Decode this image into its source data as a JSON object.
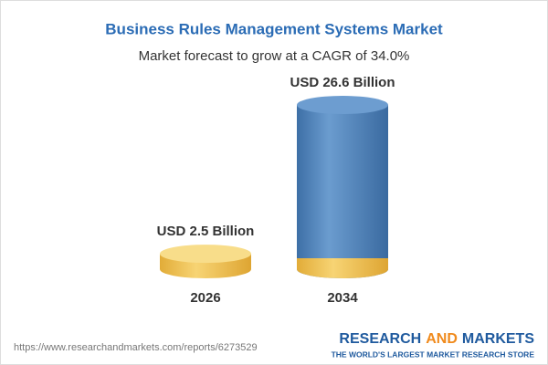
{
  "chart_data": {
    "type": "cylinder",
    "title": "Business Rules Management Systems Market",
    "subtitle": "Market forecast to grow at a CAGR of 34.0%",
    "categories": [
      "2026",
      "2034"
    ],
    "values": [
      2.5,
      26.6
    ],
    "value_labels": [
      "USD 2.5 Billion",
      "USD 26.6 Billion"
    ],
    "colors": [
      "#f2c75c",
      "#4f86bf"
    ]
  },
  "footer": {
    "url": "https://www.researchandmarkets.com/reports/6273529",
    "brand": [
      "RESEARCH",
      "AND",
      "MARKETS"
    ],
    "tagline": "THE WORLD'S LARGEST MARKET RESEARCH STORE"
  }
}
